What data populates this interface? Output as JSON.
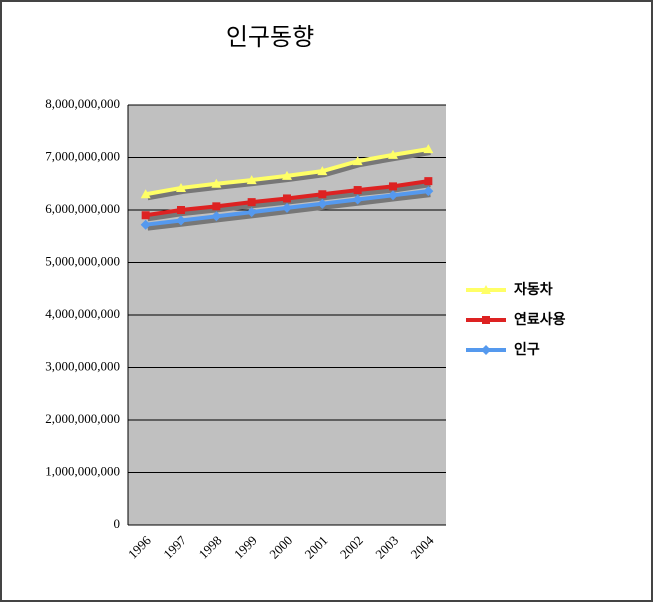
{
  "chart_data": {
    "type": "line",
    "title": "인구동향",
    "categories": [
      "1996",
      "1997",
      "1998",
      "1999",
      "2000",
      "2001",
      "2002",
      "2003",
      "2004"
    ],
    "series": [
      {
        "name": "자동차",
        "color": "#ffff66",
        "marker": "triangle",
        "values": [
          6300000000,
          6420000000,
          6500000000,
          6570000000,
          6650000000,
          6740000000,
          6930000000,
          7050000000,
          7160000000
        ]
      },
      {
        "name": "연료사용",
        "color": "#dd2222",
        "marker": "square",
        "values": [
          5900000000,
          6000000000,
          6070000000,
          6150000000,
          6220000000,
          6300000000,
          6380000000,
          6450000000,
          6550000000
        ]
      },
      {
        "name": "인구",
        "color": "#5599ee",
        "marker": "diamond",
        "values": [
          5720000000,
          5800000000,
          5880000000,
          5960000000,
          6040000000,
          6120000000,
          6200000000,
          6280000000,
          6360000000
        ]
      }
    ],
    "ylim": [
      0,
      8000000000
    ],
    "yticks": [
      0,
      {
        "value": 1000000000,
        "label": "1,000,000,000"
      },
      {
        "value": 2000000000,
        "label": "2,000,000,000"
      },
      {
        "value": 3000000000,
        "label": "3,000,000,000"
      },
      {
        "value": 4000000000,
        "label": "4,000,000,000"
      },
      {
        "value": 5000000000,
        "label": "5,000,000,000"
      },
      {
        "value": 6000000000,
        "label": "6,000,000,000"
      },
      {
        "value": 7000000000,
        "label": "7,000,000,000"
      },
      {
        "value": 8000000000,
        "label": "8,000,000,000"
      }
    ],
    "grid": true,
    "legend": "right"
  }
}
